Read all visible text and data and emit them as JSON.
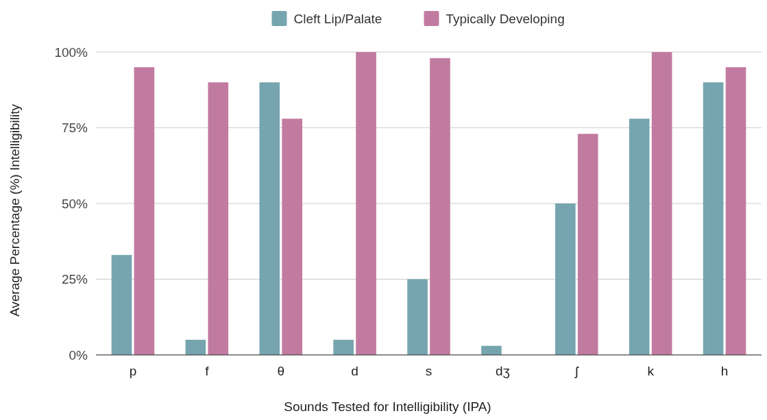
{
  "chart_data": {
    "type": "bar",
    "xlabel": "Sounds Tested for Intelligibility (IPA)",
    "ylabel": "Average Percentage (%) Intelligibility",
    "categories": [
      "p",
      "f",
      "θ",
      "d",
      "s",
      "dʒ",
      "ʃ",
      "k",
      "h"
    ],
    "series": [
      {
        "name": "Cleft Lip/Palate",
        "color": "#76a5af",
        "values": [
          33,
          5,
          90,
          5,
          25,
          3,
          50,
          78,
          90
        ]
      },
      {
        "name": "Typically Developing",
        "color": "#c27ba0",
        "values": [
          95,
          90,
          78,
          100,
          98,
          0,
          73,
          100,
          95
        ]
      }
    ],
    "ylim": [
      0,
      100
    ],
    "yticks": [
      {
        "value": 0,
        "label": "0%"
      },
      {
        "value": 25,
        "label": "25%"
      },
      {
        "value": 50,
        "label": "50%"
      },
      {
        "value": 75,
        "label": "75%"
      },
      {
        "value": 100,
        "label": "100%"
      }
    ],
    "grid": "y",
    "legend": "top"
  }
}
